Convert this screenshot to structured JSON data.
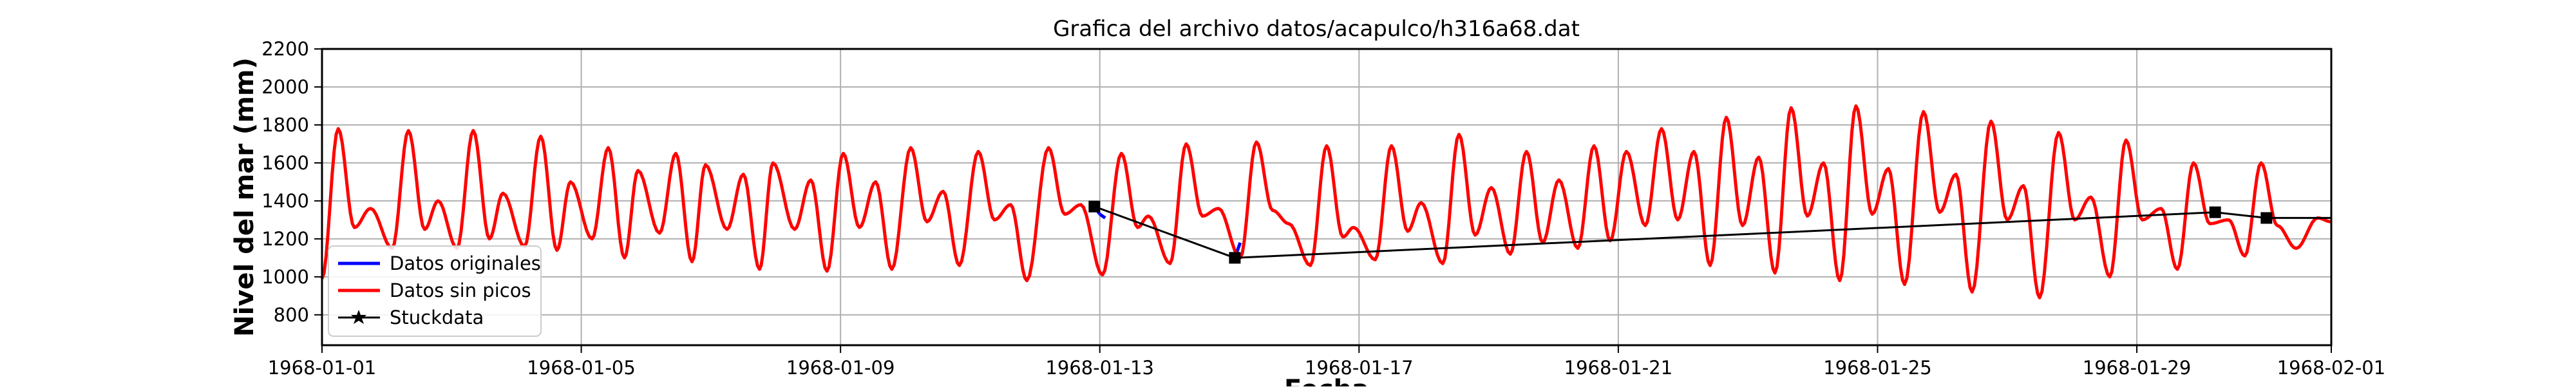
{
  "chart_data": {
    "type": "line",
    "title": "Grafica del archivo datos/acapulco/h316a68.dat",
    "xlabel": "Fecha",
    "ylabel": "Nivel del mar (mm)",
    "xlim": [
      "1968-01-01",
      "1968-02-01"
    ],
    "ylim": [
      640,
      2200
    ],
    "x_ticks": [
      "1968-01-01",
      "1968-01-05",
      "1968-01-09",
      "1968-01-13",
      "1968-01-17",
      "1968-01-21",
      "1968-01-25",
      "1968-01-29",
      "1968-02-01"
    ],
    "y_ticks": [
      800,
      1000,
      1200,
      1400,
      1600,
      1800,
      2000,
      2200
    ],
    "grid": true,
    "legend": {
      "position": "lower-left",
      "entries": [
        "Datos originales",
        "Datos sin picos",
        "Stuckdata"
      ]
    },
    "series": [
      {
        "name": "Datos originales",
        "color": "#0000ff",
        "points": [
          [
            "1968-01-12 22:00",
            1370
          ],
          [
            "1968-01-13 00:00",
            1330
          ],
          [
            "1968-01-13 02:00",
            1310
          ],
          [
            "1968-01-15 02:00",
            1100
          ],
          [
            "1968-01-15 04:00",
            1180
          ],
          [
            "1968-01-30 05:00",
            1340
          ],
          [
            "1968-01-30 07:00",
            1330
          ]
        ]
      },
      {
        "name": "Datos sin picos",
        "color": "#ff0000",
        "extrema": [
          [
            "1968-01-01 00:00",
            990
          ],
          [
            "1968-01-01 06:00",
            1780
          ],
          [
            "1968-01-01 12:00",
            1260
          ],
          [
            "1968-01-01 18:00",
            1360
          ],
          [
            "1968-01-02 02:00",
            1150
          ],
          [
            "1968-01-02 08:00",
            1770
          ],
          [
            "1968-01-02 14:00",
            1250
          ],
          [
            "1968-01-02 19:00",
            1400
          ],
          [
            "1968-01-03 02:00",
            1150
          ],
          [
            "1968-01-03 08:00",
            1770
          ],
          [
            "1968-01-03 14:00",
            1200
          ],
          [
            "1968-01-03 19:00",
            1440
          ],
          [
            "1968-01-04 03:00",
            1160
          ],
          [
            "1968-01-04 09:00",
            1740
          ],
          [
            "1968-01-04 15:00",
            1140
          ],
          [
            "1968-01-04 20:00",
            1500
          ],
          [
            "1968-01-05 04:00",
            1200
          ],
          [
            "1968-01-05 10:00",
            1680
          ],
          [
            "1968-01-05 16:00",
            1100
          ],
          [
            "1968-01-05 21:00",
            1560
          ],
          [
            "1968-01-06 05:00",
            1230
          ],
          [
            "1968-01-06 11:00",
            1650
          ],
          [
            "1968-01-06 17:00",
            1080
          ],
          [
            "1968-01-06 22:00",
            1590
          ],
          [
            "1968-01-07 06:00",
            1250
          ],
          [
            "1968-01-07 12:00",
            1540
          ],
          [
            "1968-01-07 18:00",
            1040
          ],
          [
            "1968-01-07 23:00",
            1600
          ],
          [
            "1968-01-08 07:00",
            1250
          ],
          [
            "1968-01-08 13:00",
            1510
          ],
          [
            "1968-01-08 19:00",
            1030
          ],
          [
            "1968-01-09 01:00",
            1650
          ],
          [
            "1968-01-09 07:00",
            1260
          ],
          [
            "1968-01-09 13:00",
            1500
          ],
          [
            "1968-01-09 19:00",
            1040
          ],
          [
            "1968-01-10 02:00",
            1680
          ],
          [
            "1968-01-10 08:00",
            1290
          ],
          [
            "1968-01-10 14:00",
            1450
          ],
          [
            "1968-01-10 20:00",
            1060
          ],
          [
            "1968-01-11 03:00",
            1660
          ],
          [
            "1968-01-11 09:00",
            1300
          ],
          [
            "1968-01-11 15:00",
            1380
          ],
          [
            "1968-01-11 21:00",
            980
          ],
          [
            "1968-01-12 05:00",
            1680
          ],
          [
            "1968-01-12 11:00",
            1330
          ],
          [
            "1968-01-12 17:00",
            1380
          ],
          [
            "1968-01-13 01:00",
            1010
          ],
          [
            "1968-01-13 08:00",
            1650
          ],
          [
            "1968-01-13 14:00",
            1260
          ],
          [
            "1968-01-13 18:00",
            1320
          ],
          [
            "1968-01-14 02:00",
            1070
          ],
          [
            "1968-01-14 08:00",
            1700
          ],
          [
            "1968-01-14 14:00",
            1320
          ],
          [
            "1968-01-14 20:00",
            1360
          ],
          [
            "1968-01-15 04:00",
            1100
          ],
          [
            "1968-01-15 10:00",
            1710
          ],
          [
            "1968-01-15 16:00",
            1350
          ],
          [
            "1968-01-15 22:00",
            1280
          ],
          [
            "1968-01-16 06:00",
            1060
          ],
          [
            "1968-01-16 12:00",
            1690
          ],
          [
            "1968-01-16 18:00",
            1210
          ],
          [
            "1968-01-16 22:00",
            1260
          ],
          [
            "1968-01-17 06:00",
            1090
          ],
          [
            "1968-01-17 12:00",
            1690
          ],
          [
            "1968-01-17 18:00",
            1240
          ],
          [
            "1968-01-17 23:00",
            1390
          ],
          [
            "1968-01-18 07:00",
            1070
          ],
          [
            "1968-01-18 13:00",
            1750
          ],
          [
            "1968-01-18 19:00",
            1220
          ],
          [
            "1968-01-19 01:00",
            1470
          ],
          [
            "1968-01-19 08:00",
            1120
          ],
          [
            "1968-01-19 14:00",
            1660
          ],
          [
            "1968-01-19 20:00",
            1180
          ],
          [
            "1968-01-20 02:00",
            1510
          ],
          [
            "1968-01-20 09:00",
            1150
          ],
          [
            "1968-01-20 15:00",
            1690
          ],
          [
            "1968-01-20 21:00",
            1190
          ],
          [
            "1968-01-21 03:00",
            1660
          ],
          [
            "1968-01-21 10:00",
            1270
          ],
          [
            "1968-01-21 16:00",
            1780
          ],
          [
            "1968-01-21 22:00",
            1300
          ],
          [
            "1968-01-22 04:00",
            1660
          ],
          [
            "1968-01-22 10:00",
            1060
          ],
          [
            "1968-01-22 16:00",
            1840
          ],
          [
            "1968-01-22 22:00",
            1270
          ],
          [
            "1968-01-23 04:00",
            1630
          ],
          [
            "1968-01-23 10:00",
            1020
          ],
          [
            "1968-01-23 16:00",
            1890
          ],
          [
            "1968-01-23 22:00",
            1320
          ],
          [
            "1968-01-24 04:00",
            1600
          ],
          [
            "1968-01-24 10:00",
            980
          ],
          [
            "1968-01-24 16:00",
            1900
          ],
          [
            "1968-01-24 22:00",
            1330
          ],
          [
            "1968-01-25 04:00",
            1570
          ],
          [
            "1968-01-25 10:00",
            960
          ],
          [
            "1968-01-25 17:00",
            1870
          ],
          [
            "1968-01-25 23:00",
            1340
          ],
          [
            "1968-01-26 05:00",
            1540
          ],
          [
            "1968-01-26 11:00",
            920
          ],
          [
            "1968-01-26 18:00",
            1820
          ],
          [
            "1968-01-27 00:00",
            1300
          ],
          [
            "1968-01-27 06:00",
            1480
          ],
          [
            "1968-01-27 12:00",
            890
          ],
          [
            "1968-01-27 19:00",
            1760
          ],
          [
            "1968-01-28 01:00",
            1300
          ],
          [
            "1968-01-28 07:00",
            1420
          ],
          [
            "1968-01-28 14:00",
            1000
          ],
          [
            "1968-01-28 20:00",
            1720
          ],
          [
            "1968-01-29 02:00",
            1300
          ],
          [
            "1968-01-29 09:00",
            1360
          ],
          [
            "1968-01-29 15:00",
            1040
          ],
          [
            "1968-01-29 21:00",
            1600
          ],
          [
            "1968-01-30 03:00",
            1280
          ],
          [
            "1968-01-30 10:00",
            1300
          ],
          [
            "1968-01-30 16:00",
            1110
          ],
          [
            "1968-01-30 22:00",
            1600
          ],
          [
            "1968-01-31 04:00",
            1270
          ],
          [
            "1968-01-31 11:00",
            1150
          ],
          [
            "1968-01-31 19:00",
            1310
          ],
          [
            "1968-02-01 00:00",
            1290
          ]
        ]
      },
      {
        "name": "Stuckdata",
        "color": "#000000",
        "points": [
          [
            "1968-01-12 22:00",
            1370
          ],
          [
            "1968-01-15 02:00",
            1100
          ],
          [
            "1968-01-30 05:00",
            1340
          ],
          [
            "1968-01-31 00:00",
            1310
          ],
          [
            "1968-02-01 00:00",
            1310
          ]
        ]
      }
    ]
  }
}
